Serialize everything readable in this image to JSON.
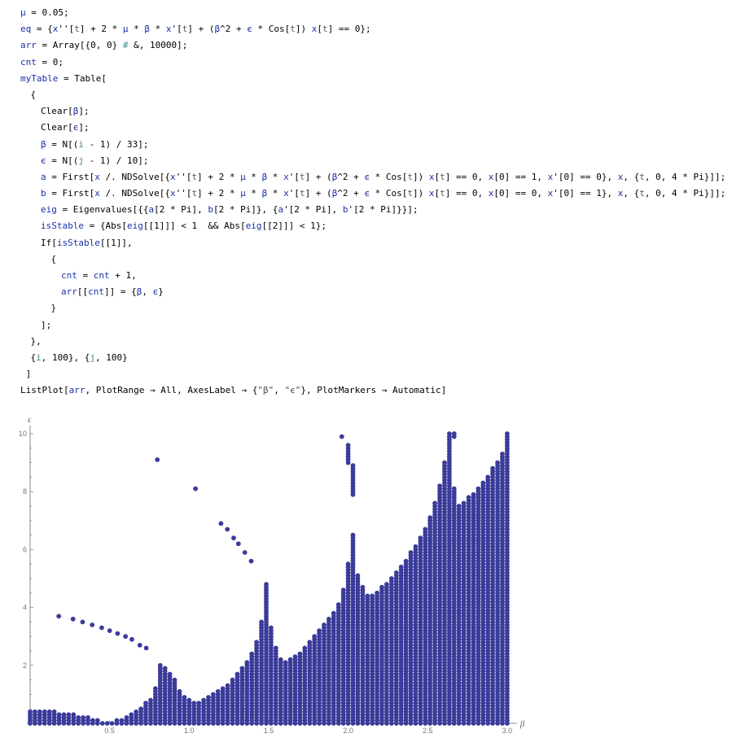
{
  "notebook": {
    "cells": [
      {
        "indent": 0,
        "tokens": [
          [
            "var",
            "μ"
          ],
          [
            "fn",
            " = 0.05;"
          ]
        ]
      },
      {
        "indent": 0,
        "tokens": [
          [
            "var",
            "eq"
          ],
          [
            "fn",
            " = {"
          ],
          [
            "var",
            "x"
          ],
          [
            "fn",
            "''["
          ],
          [
            "gray",
            "t"
          ],
          [
            "fn",
            "] + 2 * "
          ],
          [
            "var",
            "μ"
          ],
          [
            "fn",
            " * "
          ],
          [
            "var",
            "β"
          ],
          [
            "fn",
            " * "
          ],
          [
            "var",
            "x"
          ],
          [
            "fn",
            "'["
          ],
          [
            "gray",
            "t"
          ],
          [
            "fn",
            "] + ("
          ],
          [
            "var",
            "β"
          ],
          [
            "fn",
            "^2 + "
          ],
          [
            "var",
            "ϵ"
          ],
          [
            "fn",
            " * Cos["
          ],
          [
            "gray",
            "t"
          ],
          [
            "fn",
            "]) "
          ],
          [
            "var",
            "x"
          ],
          [
            "fn",
            "["
          ],
          [
            "gray",
            "t"
          ],
          [
            "fn",
            "] == 0};"
          ]
        ]
      },
      {
        "indent": 0,
        "tokens": [
          [
            "var",
            "arr"
          ],
          [
            "fn",
            " = Array[{0, 0} "
          ],
          [
            "arg",
            "#"
          ],
          [
            "fn",
            " &, 10000];"
          ]
        ]
      },
      {
        "indent": 0,
        "tokens": [
          [
            "var",
            "cnt"
          ],
          [
            "fn",
            " = 0;"
          ]
        ]
      },
      {
        "indent": 0,
        "tokens": [
          [
            "var",
            "myTable"
          ],
          [
            "fn",
            " = Table["
          ]
        ]
      },
      {
        "indent": 1,
        "tokens": [
          [
            "fn",
            "{"
          ]
        ]
      },
      {
        "indent": 2,
        "tokens": [
          [
            "fn",
            "Clear["
          ],
          [
            "var",
            "β"
          ],
          [
            "fn",
            "];"
          ]
        ]
      },
      {
        "indent": 2,
        "tokens": [
          [
            "fn",
            "Clear["
          ],
          [
            "var",
            "ϵ"
          ],
          [
            "fn",
            "];"
          ]
        ]
      },
      {
        "indent": 2,
        "tokens": [
          [
            "var",
            "β"
          ],
          [
            "fn",
            " = N[("
          ],
          [
            "arg",
            "i"
          ],
          [
            "fn",
            " - 1) / 33];"
          ]
        ]
      },
      {
        "indent": 2,
        "tokens": [
          [
            "var",
            "ϵ"
          ],
          [
            "fn",
            " = N[("
          ],
          [
            "arg",
            "j"
          ],
          [
            "fn",
            " - 1) / 10];"
          ]
        ]
      },
      {
        "indent": 2,
        "tokens": [
          [
            "var",
            "a"
          ],
          [
            "fn",
            " = First["
          ],
          [
            "var",
            "x"
          ],
          [
            "fn",
            " /. NDSolve[{"
          ],
          [
            "var",
            "x"
          ],
          [
            "fn",
            "''["
          ],
          [
            "gray",
            "t"
          ],
          [
            "fn",
            "] + 2 * "
          ],
          [
            "var",
            "μ"
          ],
          [
            "fn",
            " * "
          ],
          [
            "var",
            "β"
          ],
          [
            "fn",
            " * "
          ],
          [
            "var",
            "x"
          ],
          [
            "fn",
            "'["
          ],
          [
            "gray",
            "t"
          ],
          [
            "fn",
            "] + ("
          ],
          [
            "var",
            "β"
          ],
          [
            "fn",
            "^2 + "
          ],
          [
            "var",
            "ϵ"
          ],
          [
            "fn",
            " * Cos["
          ],
          [
            "gray",
            "t"
          ],
          [
            "fn",
            "]) "
          ],
          [
            "var",
            "x"
          ],
          [
            "fn",
            "["
          ],
          [
            "gray",
            "t"
          ],
          [
            "fn",
            "] == 0, "
          ],
          [
            "var",
            "x"
          ],
          [
            "fn",
            "[0] == 1, "
          ],
          [
            "var",
            "x"
          ],
          [
            "fn",
            "'[0] == 0}, "
          ],
          [
            "var",
            "x"
          ],
          [
            "fn",
            ", {"
          ],
          [
            "gray",
            "t"
          ],
          [
            "fn",
            ", 0, 4 * Pi}]];"
          ]
        ]
      },
      {
        "indent": 2,
        "tokens": [
          [
            "var",
            "b"
          ],
          [
            "fn",
            " = First["
          ],
          [
            "var",
            "x"
          ],
          [
            "fn",
            " /. NDSolve[{"
          ],
          [
            "var",
            "x"
          ],
          [
            "fn",
            "''["
          ],
          [
            "gray",
            "t"
          ],
          [
            "fn",
            "] + 2 * "
          ],
          [
            "var",
            "μ"
          ],
          [
            "fn",
            " * "
          ],
          [
            "var",
            "β"
          ],
          [
            "fn",
            " * "
          ],
          [
            "var",
            "x"
          ],
          [
            "fn",
            "'["
          ],
          [
            "gray",
            "t"
          ],
          [
            "fn",
            "] + ("
          ],
          [
            "var",
            "β"
          ],
          [
            "fn",
            "^2 + "
          ],
          [
            "var",
            "ϵ"
          ],
          [
            "fn",
            " * Cos["
          ],
          [
            "gray",
            "t"
          ],
          [
            "fn",
            "]) "
          ],
          [
            "var",
            "x"
          ],
          [
            "fn",
            "["
          ],
          [
            "gray",
            "t"
          ],
          [
            "fn",
            "] == 0, "
          ],
          [
            "var",
            "x"
          ],
          [
            "fn",
            "[0] == 0, "
          ],
          [
            "var",
            "x"
          ],
          [
            "fn",
            "'[0] == 1}, "
          ],
          [
            "var",
            "x"
          ],
          [
            "fn",
            ", {"
          ],
          [
            "gray",
            "t"
          ],
          [
            "fn",
            ", 0, 4 * Pi}]];"
          ]
        ]
      },
      {
        "indent": 2,
        "tokens": [
          [
            "var",
            "eig"
          ],
          [
            "fn",
            " = Eigenvalues[{{"
          ],
          [
            "var",
            "a"
          ],
          [
            "fn",
            "[2 * Pi], "
          ],
          [
            "var",
            "b"
          ],
          [
            "fn",
            "[2 * Pi]}, {"
          ],
          [
            "var",
            "a"
          ],
          [
            "fn",
            "'[2 * Pi], "
          ],
          [
            "var",
            "b"
          ],
          [
            "fn",
            "'[2 * Pi]}}];"
          ]
        ]
      },
      {
        "indent": 2,
        "tokens": [
          [
            "var",
            "isStable"
          ],
          [
            "fn",
            " = {Abs["
          ],
          [
            "var",
            "eig"
          ],
          [
            "fn",
            "[[1]]] < 1  && Abs["
          ],
          [
            "var",
            "eig"
          ],
          [
            "fn",
            "[[2]]] < 1};"
          ]
        ]
      },
      {
        "indent": 2,
        "tokens": [
          [
            "fn",
            "If["
          ],
          [
            "var",
            "isStable"
          ],
          [
            "fn",
            "[[1]],"
          ]
        ]
      },
      {
        "indent": 3,
        "tokens": [
          [
            "fn",
            "{"
          ]
        ]
      },
      {
        "indent": 4,
        "tokens": [
          [
            "var",
            "cnt"
          ],
          [
            "fn",
            " = "
          ],
          [
            "var",
            "cnt"
          ],
          [
            "fn",
            " + 1,"
          ]
        ]
      },
      {
        "indent": 4,
        "tokens": [
          [
            "var",
            "arr"
          ],
          [
            "fn",
            "[["
          ],
          [
            "var",
            "cnt"
          ],
          [
            "fn",
            "]] = {"
          ],
          [
            "var",
            "β"
          ],
          [
            "fn",
            ", "
          ],
          [
            "var",
            "ϵ"
          ],
          [
            "fn",
            "}"
          ]
        ]
      },
      {
        "indent": 3,
        "tokens": [
          [
            "fn",
            "}"
          ]
        ]
      },
      {
        "indent": 2,
        "tokens": [
          [
            "fn",
            "];"
          ]
        ]
      },
      {
        "indent": 1,
        "tokens": [
          [
            "fn",
            "},"
          ]
        ]
      },
      {
        "indent": 1,
        "tokens": [
          [
            "fn",
            "{"
          ],
          [
            "arg",
            "i"
          ],
          [
            "fn",
            ", 100}, {"
          ],
          [
            "arg",
            "j"
          ],
          [
            "fn",
            ", 100}"
          ]
        ]
      },
      {
        "indent": 0,
        "tokens": [
          [
            "fn",
            " ]"
          ]
        ]
      },
      {
        "indent": 0,
        "tokens": [
          [
            "fn",
            "ListPlot["
          ],
          [
            "var",
            "arr"
          ],
          [
            "fn",
            ", PlotRange → All, AxesLabel → {"
          ],
          [
            "str",
            "\"β\""
          ],
          [
            "fn",
            ", "
          ],
          [
            "str",
            "\"ϵ\""
          ],
          [
            "fn",
            "}, PlotMarkers → Automatic]"
          ]
        ]
      }
    ]
  },
  "colors": {
    "marker": "#3b3b9a",
    "axis": "#888888",
    "variable": "#1b2fa8",
    "pattern_arg": "#3f8a8f"
  },
  "chart_data": {
    "type": "scatter",
    "xlabel": "β",
    "ylabel": "ϵ",
    "xlim": [
      0,
      3.0
    ],
    "ylim": [
      0,
      10
    ],
    "x_ticks": [
      0.5,
      1.0,
      1.5,
      2.0,
      2.5,
      3.0
    ],
    "y_ticks": [
      2,
      4,
      6,
      8,
      10
    ],
    "x_tick_labels": [
      "0.5",
      "1.0",
      "1.5",
      "2.0",
      "2.5",
      "3.0"
    ],
    "y_tick_labels": [
      "2",
      "4",
      "6",
      "8",
      "10"
    ],
    "beta_step": 0.0303,
    "eps_step": 0.1,
    "stable_columns": [
      [
        0.0,
        0.0,
        0.4
      ],
      [
        0.0303,
        0.0,
        0.4
      ],
      [
        0.0606,
        0.0,
        0.4
      ],
      [
        0.0909,
        0.0,
        0.4
      ],
      [
        0.1212,
        0.0,
        0.4
      ],
      [
        0.1515,
        0.0,
        0.4
      ],
      [
        0.1818,
        0.0,
        0.3
      ],
      [
        0.2121,
        0.0,
        0.3
      ],
      [
        0.2424,
        0.0,
        0.3
      ],
      [
        0.2727,
        0.0,
        0.3
      ],
      [
        0.303,
        0.0,
        0.2
      ],
      [
        0.3333,
        0.0,
        0.2
      ],
      [
        0.3636,
        0.0,
        0.2
      ],
      [
        0.3939,
        0.0,
        0.1
      ],
      [
        0.4242,
        0.0,
        0.1
      ],
      [
        0.4545,
        0.0,
        0.0
      ],
      [
        0.4848,
        0.0,
        0.0
      ],
      [
        0.5152,
        0.0,
        0.0
      ],
      [
        0.5455,
        0.0,
        0.1
      ],
      [
        0.5758,
        0.0,
        0.1
      ],
      [
        0.6061,
        0.0,
        0.2
      ],
      [
        0.6364,
        0.0,
        0.3
      ],
      [
        0.6667,
        0.0,
        0.4
      ],
      [
        0.697,
        0.0,
        0.5
      ],
      [
        0.7273,
        0.0,
        0.7
      ],
      [
        0.7576,
        0.0,
        0.8
      ],
      [
        0.7879,
        0.0,
        1.2
      ],
      [
        0.8182,
        0.0,
        2.0
      ],
      [
        0.8485,
        0.0,
        1.9
      ],
      [
        0.8788,
        0.0,
        1.7
      ],
      [
        0.9091,
        0.0,
        1.5
      ],
      [
        0.9394,
        0.0,
        1.1
      ],
      [
        0.9697,
        0.0,
        0.9
      ],
      [
        1.0,
        0.0,
        0.8
      ],
      [
        1.0303,
        0.0,
        0.7
      ],
      [
        1.0606,
        0.0,
        0.7
      ],
      [
        1.0909,
        0.0,
        0.8
      ],
      [
        1.1212,
        0.0,
        0.9
      ],
      [
        1.1515,
        0.0,
        1.0
      ],
      [
        1.1818,
        0.0,
        1.1
      ],
      [
        1.2121,
        0.0,
        1.2
      ],
      [
        1.2424,
        0.0,
        1.3
      ],
      [
        1.2727,
        0.0,
        1.5
      ],
      [
        1.303,
        0.0,
        1.7
      ],
      [
        1.3333,
        0.0,
        1.9
      ],
      [
        1.3636,
        0.0,
        2.1
      ],
      [
        1.3939,
        0.0,
        2.4
      ],
      [
        1.4242,
        0.0,
        2.8
      ],
      [
        1.4545,
        0.0,
        3.5
      ],
      [
        1.4848,
        0.0,
        4.8
      ],
      [
        1.5152,
        0.0,
        3.3
      ],
      [
        1.5455,
        0.0,
        2.6
      ],
      [
        1.5758,
        0.0,
        2.2
      ],
      [
        1.6061,
        0.0,
        2.1
      ],
      [
        1.6364,
        0.0,
        2.2
      ],
      [
        1.6667,
        0.0,
        2.3
      ],
      [
        1.697,
        0.0,
        2.4
      ],
      [
        1.7273,
        0.0,
        2.6
      ],
      [
        1.7576,
        0.0,
        2.8
      ],
      [
        1.7879,
        0.0,
        3.0
      ],
      [
        1.8182,
        0.0,
        3.2
      ],
      [
        1.8485,
        0.0,
        3.4
      ],
      [
        1.8788,
        0.0,
        3.6
      ],
      [
        1.9091,
        0.0,
        3.8
      ],
      [
        1.9394,
        0.0,
        4.1
      ],
      [
        1.9697,
        0.0,
        4.6
      ],
      [
        2.0,
        0.0,
        5.5
      ],
      [
        2.0303,
        0.0,
        6.5
      ],
      [
        2.0606,
        0.0,
        5.1
      ],
      [
        2.0909,
        0.0,
        4.7
      ],
      [
        2.1212,
        0.0,
        4.4
      ],
      [
        2.1515,
        0.0,
        4.4
      ],
      [
        2.1818,
        0.0,
        4.5
      ],
      [
        2.2121,
        0.0,
        4.7
      ],
      [
        2.2424,
        0.0,
        4.8
      ],
      [
        2.2727,
        0.0,
        5.0
      ],
      [
        2.303,
        0.0,
        5.2
      ],
      [
        2.3333,
        0.0,
        5.4
      ],
      [
        2.3636,
        0.0,
        5.6
      ],
      [
        2.3939,
        0.0,
        5.9
      ],
      [
        2.4242,
        0.0,
        6.1
      ],
      [
        2.4545,
        0.0,
        6.4
      ],
      [
        2.4848,
        0.0,
        6.7
      ],
      [
        2.5152,
        0.0,
        7.1
      ],
      [
        2.5455,
        0.0,
        7.6
      ],
      [
        2.5758,
        0.0,
        8.2
      ],
      [
        2.6061,
        0.0,
        9.0
      ],
      [
        2.6364,
        0.0,
        9.9
      ],
      [
        2.6667,
        0.0,
        8.1
      ],
      [
        2.697,
        0.0,
        7.5
      ],
      [
        2.7273,
        0.0,
        7.6
      ],
      [
        2.7576,
        0.0,
        7.8
      ],
      [
        2.7879,
        0.0,
        7.9
      ],
      [
        2.8182,
        0.0,
        8.1
      ],
      [
        2.8485,
        0.0,
        8.3
      ],
      [
        2.8788,
        0.0,
        8.5
      ],
      [
        2.9091,
        0.0,
        8.8
      ],
      [
        2.9394,
        0.0,
        9.0
      ],
      [
        2.9697,
        0.0,
        9.3
      ],
      [
        3.0,
        0.0,
        9.9
      ]
    ],
    "extra_columns": [
      [
        2.0,
        9.0,
        9.6
      ],
      [
        2.0303,
        7.9,
        8.9
      ],
      [
        2.6364,
        10.0,
        10.0
      ],
      [
        2.6667,
        9.9,
        10.0
      ],
      [
        3.0,
        10.0,
        10.0
      ]
    ],
    "isolated_points": [
      [
        0.18,
        3.7
      ],
      [
        0.27,
        3.6
      ],
      [
        0.33,
        3.5
      ],
      [
        0.39,
        3.4
      ],
      [
        0.45,
        3.3
      ],
      [
        0.5,
        3.2
      ],
      [
        0.55,
        3.1
      ],
      [
        0.6,
        3.0
      ],
      [
        0.64,
        2.9
      ],
      [
        0.69,
        2.7
      ],
      [
        0.73,
        2.6
      ],
      [
        0.8,
        9.1
      ],
      [
        1.04,
        8.1
      ],
      [
        1.2,
        6.9
      ],
      [
        1.24,
        6.7
      ],
      [
        1.28,
        6.4
      ],
      [
        1.31,
        6.2
      ],
      [
        1.35,
        5.9
      ],
      [
        1.39,
        5.6
      ],
      [
        1.96,
        9.9
      ]
    ]
  }
}
